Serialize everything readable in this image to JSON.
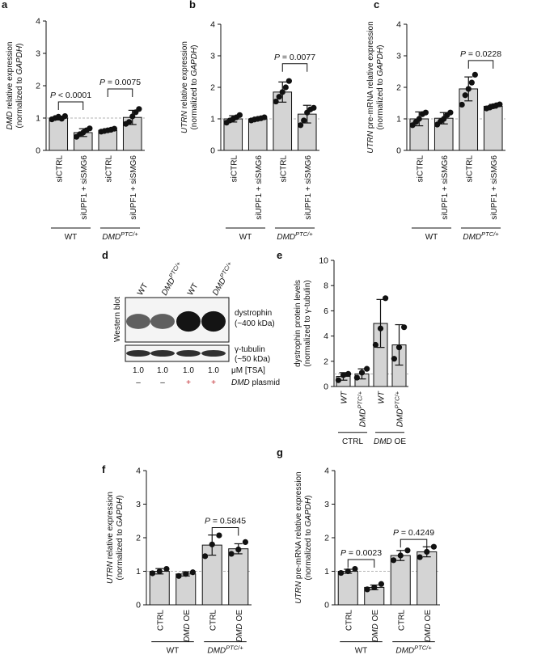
{
  "colors": {
    "bar": "#d4d4d4",
    "dot": "#111111",
    "ref_line": "#9a9a9a",
    "plasmid_plus": "#c0272d"
  },
  "chart_data": [
    {
      "id": "a",
      "type": "bar",
      "panel_label": "a",
      "ylabel_lines": [
        "DMD relative expression",
        "(normalized to GAPDH)"
      ],
      "ylim": [
        0,
        4
      ],
      "yticks": [
        0,
        1,
        2,
        3,
        4
      ],
      "ref_line": 1,
      "categories": [
        "siCTRL",
        "siUPF1 + siSMG6",
        "siCTRL",
        "siUPF1 + siSMG6"
      ],
      "values": [
        1.0,
        0.55,
        0.62,
        1.02
      ],
      "errors": [
        0.06,
        0.12,
        0.05,
        0.22
      ],
      "points": [
        [
          0.96,
          1.0,
          1.04,
          0.98,
          1.06
        ],
        [
          0.42,
          0.5,
          0.55,
          0.62,
          0.68
        ],
        [
          0.58,
          0.6,
          0.62,
          0.64,
          0.67
        ],
        [
          0.82,
          0.88,
          1.05,
          1.18,
          1.28
        ]
      ],
      "groups": [
        {
          "label": "WT",
          "cats": [
            0,
            1
          ]
        },
        {
          "label": "DMD",
          "sup": "PTC/+",
          "cats": [
            2,
            3
          ]
        }
      ],
      "comparisons": [
        {
          "a": 0,
          "b": 1,
          "text": "P < 0.0001",
          "y": 1.5
        },
        {
          "a": 2,
          "b": 3,
          "text": "P = 0.0075",
          "y": 1.9
        }
      ]
    },
    {
      "id": "b",
      "type": "bar",
      "panel_label": "b",
      "ylabel_lines": [
        "UTRN relative expression",
        "(normalized to GAPDH)"
      ],
      "ylim": [
        0,
        4
      ],
      "yticks": [
        0,
        1,
        2,
        3,
        4
      ],
      "ref_line": 1,
      "categories": [
        "siCTRL",
        "siUPF1 + siSMG6",
        "siCTRL",
        "siUPF1 + siSMG6"
      ],
      "values": [
        1.0,
        1.0,
        1.85,
        1.15
      ],
      "errors": [
        0.1,
        0.05,
        0.32,
        0.28
      ],
      "points": [
        [
          0.88,
          0.95,
          1.0,
          1.05,
          1.12
        ],
        [
          0.95,
          0.98,
          1.0,
          1.02,
          1.05
        ],
        [
          1.55,
          1.7,
          1.85,
          2.0,
          2.2
        ],
        [
          0.8,
          0.95,
          1.2,
          1.3,
          1.35
        ]
      ],
      "groups": [
        {
          "label": "WT",
          "cats": [
            0,
            1
          ]
        },
        {
          "label": "DMD",
          "sup": "PTC/+",
          "cats": [
            2,
            3
          ]
        }
      ],
      "comparisons": [
        {
          "a": 2,
          "b": 3,
          "text": "P = 0.0077",
          "y": 2.75
        }
      ]
    },
    {
      "id": "c",
      "type": "bar",
      "panel_label": "c",
      "ylabel_lines": [
        "UTRN pre-mRNA relative expression",
        "(normalized to GAPDH)"
      ],
      "ylim": [
        0,
        4
      ],
      "yticks": [
        0,
        1,
        2,
        3,
        4
      ],
      "ref_line": 1,
      "categories": [
        "siCTRL",
        "siUPF1 + siSMG6",
        "siCTRL",
        "siUPF1 + siSMG6"
      ],
      "values": [
        1.0,
        1.02,
        1.95,
        1.4
      ],
      "errors": [
        0.22,
        0.18,
        0.38,
        0.06
      ],
      "points": [
        [
          0.8,
          0.9,
          1.0,
          1.15,
          1.2
        ],
        [
          0.82,
          0.92,
          1.0,
          1.12,
          1.2
        ],
        [
          1.45,
          1.75,
          1.95,
          2.15,
          2.4
        ],
        [
          1.33,
          1.36,
          1.4,
          1.43,
          1.46
        ]
      ],
      "groups": [
        {
          "label": "WT",
          "cats": [
            0,
            1
          ]
        },
        {
          "label": "DMD",
          "sup": "PTC/+",
          "cats": [
            2,
            3
          ]
        }
      ],
      "comparisons": [
        {
          "a": 2,
          "b": 3,
          "text": "P = 0.0228",
          "y": 2.85
        }
      ]
    },
    {
      "id": "e",
      "type": "bar",
      "panel_label": "e",
      "ylabel_lines": [
        "dystrophin protein levels",
        "(normalized to γ-tubulin)"
      ],
      "ylim": [
        0,
        10
      ],
      "yticks": [
        0,
        2,
        4,
        6,
        8,
        10
      ],
      "ref_line": 1,
      "categories": [
        {
          "t": "WT"
        },
        {
          "t": "DMD",
          "sup": "PTC/+"
        },
        {
          "t": "WT"
        },
        {
          "t": "DMD",
          "sup": "PTC/+"
        }
      ],
      "values": [
        0.8,
        1.0,
        5.0,
        3.3
      ],
      "errors": [
        0.3,
        0.4,
        1.9,
        1.6
      ],
      "points": [
        [
          0.5,
          0.9,
          1.0
        ],
        [
          0.7,
          1.1,
          1.4
        ],
        [
          3.3,
          4.6,
          7.0
        ],
        [
          2.2,
          3.1,
          4.7
        ]
      ],
      "groups": [
        {
          "label": "CTRL",
          "cats": [
            0,
            1
          ]
        },
        {
          "label": "DMD OE",
          "cats": [
            2,
            3
          ]
        }
      ],
      "comparisons": []
    },
    {
      "id": "f",
      "type": "bar",
      "panel_label": "f",
      "ylabel_lines": [
        "UTRN relative expression",
        "(normalized to GAPDH)"
      ],
      "ylim": [
        0,
        4
      ],
      "yticks": [
        0,
        1,
        2,
        3,
        4
      ],
      "ref_line": 1,
      "categories": [
        "CTRL",
        "DMD OE",
        "CTRL",
        "DMD OE"
      ],
      "values": [
        1.0,
        0.92,
        1.78,
        1.67
      ],
      "errors": [
        0.08,
        0.06,
        0.3,
        0.15
      ],
      "points": [
        [
          0.94,
          1.0,
          1.07
        ],
        [
          0.86,
          0.92,
          0.97
        ],
        [
          1.45,
          1.8,
          2.07
        ],
        [
          1.52,
          1.65,
          1.87
        ]
      ],
      "groups": [
        {
          "label": "WT",
          "cats": [
            0,
            1
          ]
        },
        {
          "label": "DMD",
          "sup": "PTC/+",
          "cats": [
            2,
            3
          ]
        }
      ],
      "comparisons": [
        {
          "a": 2,
          "b": 3,
          "text": "P = 0.5845",
          "y": 2.3
        }
      ]
    },
    {
      "id": "g",
      "type": "bar",
      "panel_label": "g",
      "ylabel_lines": [
        "UTRN pre-mRNA relative expression",
        "(normalized to GAPDH)"
      ],
      "ylim": [
        0,
        4
      ],
      "yticks": [
        0,
        1,
        2,
        3,
        4
      ],
      "ref_line": 1,
      "categories": [
        "CTRL",
        "DMD OE",
        "CTRL",
        "DMD OE"
      ],
      "values": [
        1.0,
        0.52,
        1.47,
        1.58
      ],
      "errors": [
        0.06,
        0.07,
        0.15,
        0.15
      ],
      "points": [
        [
          0.95,
          1.0,
          1.07
        ],
        [
          0.46,
          0.52,
          0.62
        ],
        [
          1.33,
          1.47,
          1.62
        ],
        [
          1.42,
          1.58,
          1.73
        ]
      ],
      "groups": [
        {
          "label": "WT",
          "cats": [
            0,
            1
          ]
        },
        {
          "label": "DMD",
          "sup": "PTC/+",
          "cats": [
            2,
            3
          ]
        }
      ],
      "comparisons": [
        {
          "a": 0,
          "b": 1,
          "text": "P = 0.0023",
          "y": 1.35
        },
        {
          "a": 2,
          "b": 3,
          "text": "P = 0.4249",
          "y": 1.95
        }
      ]
    }
  ],
  "western_blot": {
    "panel_label": "d",
    "side_label": "Western blot",
    "lanes": [
      {
        "t": "WT"
      },
      {
        "t": "DMD",
        "sup": "PTC/+"
      },
      {
        "t": "WT"
      },
      {
        "t": "DMD",
        "sup": "PTC/+"
      }
    ],
    "bands": [
      {
        "name": "dystrophin",
        "size": "(~400 kDa)",
        "intensity": [
          0.55,
          0.55,
          0.95,
          0.95
        ]
      },
      {
        "name": "γ-tubulin",
        "size": "(~50 kDa)",
        "intensity": [
          0.8,
          0.8,
          0.8,
          0.8
        ]
      }
    ],
    "tsa_values": [
      "1.0",
      "1.0",
      "1.0",
      "1.0"
    ],
    "tsa_label": "μM [TSA]",
    "plasmid_signs": [
      "–",
      "–",
      "+",
      "+"
    ],
    "plasmid_label": {
      "t": "DMD",
      "rest": " plasmid"
    }
  }
}
